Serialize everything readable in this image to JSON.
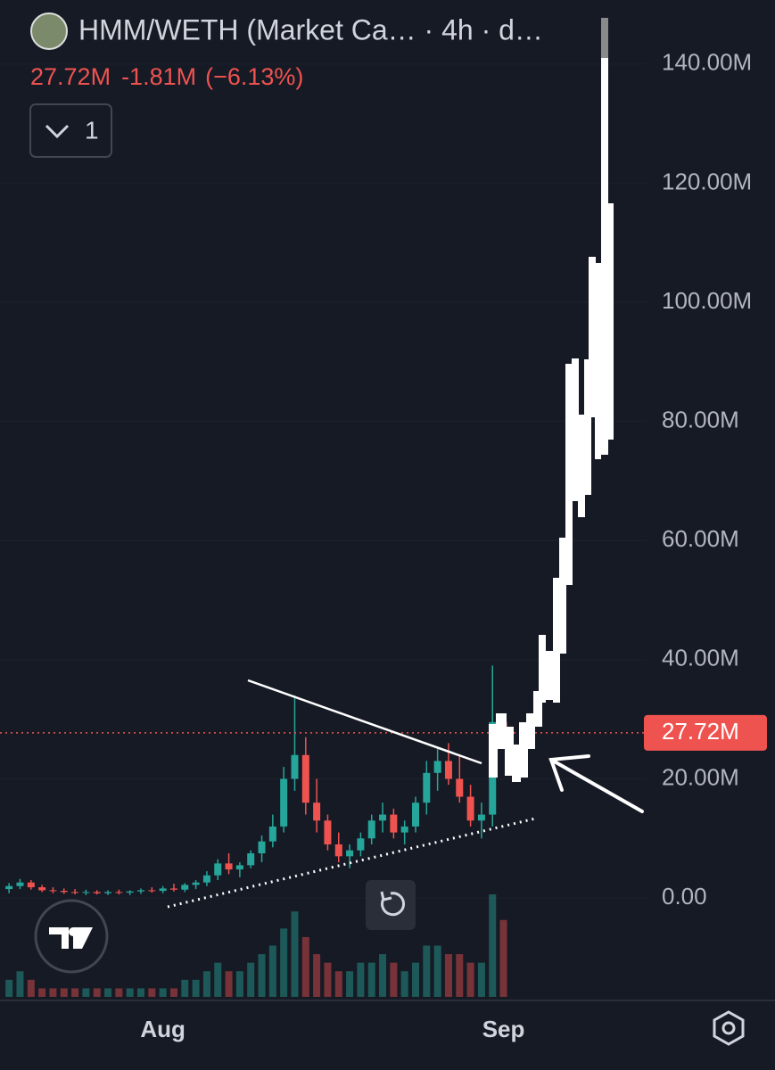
{
  "chart_data": {
    "type": "candlestick",
    "title": "HMM/WETH (Market Ca…  · 4h · d…",
    "last_value": {
      "value": 27720000,
      "label": "27.72M"
    },
    "change": {
      "value": -1810000,
      "label": "-1.81M"
    },
    "change_percent": {
      "value": -6.13,
      "label": "(−6.13%)"
    },
    "indicator_count": 1,
    "up_color": "#26a69a",
    "down_color": "#ef5350",
    "categories": [
      null,
      null,
      null,
      null,
      null,
      null,
      null,
      null,
      null,
      null,
      null,
      null,
      null,
      null,
      "Aug",
      null,
      null,
      null,
      null,
      null,
      null,
      null,
      null,
      null,
      null,
      null,
      null,
      null,
      null,
      null,
      null,
      null,
      null,
      null,
      null,
      null,
      null,
      null,
      null,
      null,
      null,
      null,
      null,
      null,
      null,
      "Sep"
    ],
    "open": [
      1500000.0,
      2000000.0,
      2600000.0,
      1800000.0,
      1300000.0,
      1200000.0,
      1000000.0,
      900000.0,
      1000000.0,
      800000.0,
      1000000.0,
      900000.0,
      1100000.0,
      1300000.0,
      1200000.0,
      1600000.0,
      1400000.0,
      2200000.0,
      2600000.0,
      3800000.0,
      5800000.0,
      4800000.0,
      5500000.0,
      7500000.0,
      9500000.0,
      12000000.0,
      20000000.0,
      24000000.0,
      16000000.0,
      13000000.0,
      9000000.0,
      7000000.0,
      8000000.0,
      10000000.0,
      13000000.0,
      14000000.0,
      11000000.0,
      12000000.0,
      16000000.0,
      21000000.0,
      23000000.0,
      20000000.0,
      17000000.0,
      13000000.0,
      14000000.0,
      29530000.0
    ],
    "high": [
      2500000.0,
      3200000.0,
      3000000.0,
      2200000.0,
      1800000.0,
      1600000.0,
      1500000.0,
      1400000.0,
      1300000.0,
      1300000.0,
      1400000.0,
      1300000.0,
      1600000.0,
      1800000.0,
      2000000.0,
      2400000.0,
      2500000.0,
      3000000.0,
      4500000.0,
      6500000.0,
      7500000.0,
      6000000.0,
      8000000.0,
      10500000.0,
      14000000.0,
      22000000.0,
      34000000.0,
      27000000.0,
      20000000.0,
      14000000.0,
      11000000.0,
      9000000.0,
      11000000.0,
      14000000.0,
      16000000.0,
      15000000.0,
      13000000.0,
      17000000.0,
      23000000.0,
      25000000.0,
      26000000.0,
      24000000.0,
      19000000.0,
      16000000.0,
      39000000.0,
      31000000.0
    ],
    "low": [
      800000.0,
      1500000.0,
      1400000.0,
      1000000.0,
      800000.0,
      700000.0,
      600000.0,
      500000.0,
      600000.0,
      500000.0,
      600000.0,
      500000.0,
      700000.0,
      900000.0,
      800000.0,
      1100000.0,
      1000000.0,
      1500000.0,
      2000000.0,
      3000000.0,
      4000000.0,
      3500000.0,
      5000000.0,
      6000000.0,
      8500000.0,
      11000000.0,
      18000000.0,
      14000000.0,
      11000000.0,
      8000000.0,
      6000000.0,
      5000000.0,
      7000000.0,
      9000000.0,
      11000000.0,
      10000000.0,
      9000000.0,
      11000000.0,
      14000000.0,
      18000000.0,
      19000000.0,
      16000000.0,
      12000000.0,
      10000000.0,
      12000000.0,
      25000000.0
    ],
    "close": [
      2000000.0,
      2600000.0,
      1800000.0,
      1300000.0,
      1200000.0,
      1000000.0,
      900000.0,
      1000000.0,
      800000.0,
      1000000.0,
      900000.0,
      1100000.0,
      1300000.0,
      1200000.0,
      1600000.0,
      1400000.0,
      2200000.0,
      2600000.0,
      3800000.0,
      5800000.0,
      4800000.0,
      5500000.0,
      7500000.0,
      9500000.0,
      12000000.0,
      20000000.0,
      24000000.0,
      16000000.0,
      13000000.0,
      9000000.0,
      7000000.0,
      8000000.0,
      10000000.0,
      13000000.0,
      14000000.0,
      11000000.0,
      12000000.0,
      16000000.0,
      21000000.0,
      23000000.0,
      20000000.0,
      17000000.0,
      13000000.0,
      14000000.0,
      29530000.0,
      27720000.0
    ],
    "volume": [
      2,
      3,
      2,
      1,
      1,
      1,
      1,
      1,
      1,
      1,
      1,
      1,
      1,
      1,
      1,
      1,
      2,
      2,
      3,
      4,
      3,
      3,
      4,
      5,
      6,
      8,
      10,
      7,
      5,
      4,
      3,
      3,
      4,
      4,
      5,
      4,
      3,
      4,
      6,
      6,
      5,
      5,
      4,
      4,
      12,
      9
    ],
    "ylim": [
      -16900000,
      150750000
    ],
    "yticks": [
      {
        "value": 0,
        "label": "0.00"
      },
      {
        "value": 20000000,
        "label": "20.00M"
      },
      {
        "value": 40000000,
        "label": "40.00M"
      },
      {
        "value": 60000000,
        "label": "60.00M"
      },
      {
        "value": 80000000,
        "label": "80.00M"
      },
      {
        "value": 100000000,
        "label": "100.00M"
      },
      {
        "value": 120000000,
        "label": "120.00M"
      },
      {
        "value": 140000000,
        "label": "140.00M"
      }
    ]
  }
}
